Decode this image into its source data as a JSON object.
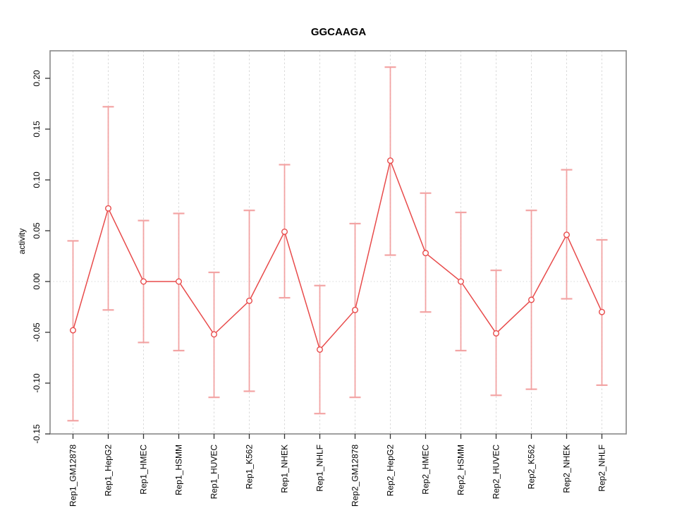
{
  "chart_data": {
    "type": "line",
    "title": "GGCAAGA",
    "xlabel": "",
    "ylabel": "activity",
    "categories": [
      "Rep1_GM12878",
      "Rep1_HepG2",
      "Rep1_HMEC",
      "Rep1_HSMM",
      "Rep1_HUVEC",
      "Rep1_K562",
      "Rep1_NHEK",
      "Rep1_NHLF",
      "Rep2_GM12878",
      "Rep2_HepG2",
      "Rep2_HMEC",
      "Rep2_HSMM",
      "Rep2_HUVEC",
      "Rep2_K562",
      "Rep2_NHEK",
      "Rep2_NHLF"
    ],
    "series": [
      {
        "name": "activity",
        "values": [
          -0.048,
          0.072,
          0.0,
          0.0,
          -0.052,
          -0.019,
          0.049,
          -0.067,
          -0.028,
          0.119,
          0.028,
          0.0,
          -0.051,
          -0.018,
          0.046,
          -0.03
        ],
        "error_high": [
          0.04,
          0.172,
          0.06,
          0.067,
          0.009,
          0.07,
          0.115,
          -0.004,
          0.057,
          0.211,
          0.087,
          0.068,
          0.011,
          0.07,
          0.11,
          0.041
        ],
        "error_low": [
          -0.137,
          -0.028,
          -0.06,
          -0.068,
          -0.114,
          -0.108,
          -0.016,
          -0.13,
          -0.114,
          0.026,
          -0.03,
          -0.068,
          -0.112,
          -0.106,
          -0.017,
          -0.102
        ]
      }
    ],
    "yticks": [
      -0.15,
      -0.1,
      -0.05,
      0.0,
      0.05,
      0.1,
      0.15,
      0.2
    ],
    "ylim": [
      -0.158,
      0.218
    ],
    "grid": "vertical-dashed",
    "zero_line_dotted": true,
    "legend": "none",
    "marker": "open-circle",
    "colors": {
      "series_line": "#e84b4b",
      "error_bar": "#f29b9b",
      "gridline": "#d9d9d9",
      "zero_line": "#d9d9d9",
      "box": "#888888",
      "tick": "#333333",
      "text": "#000000",
      "background": "#ffffff"
    }
  }
}
